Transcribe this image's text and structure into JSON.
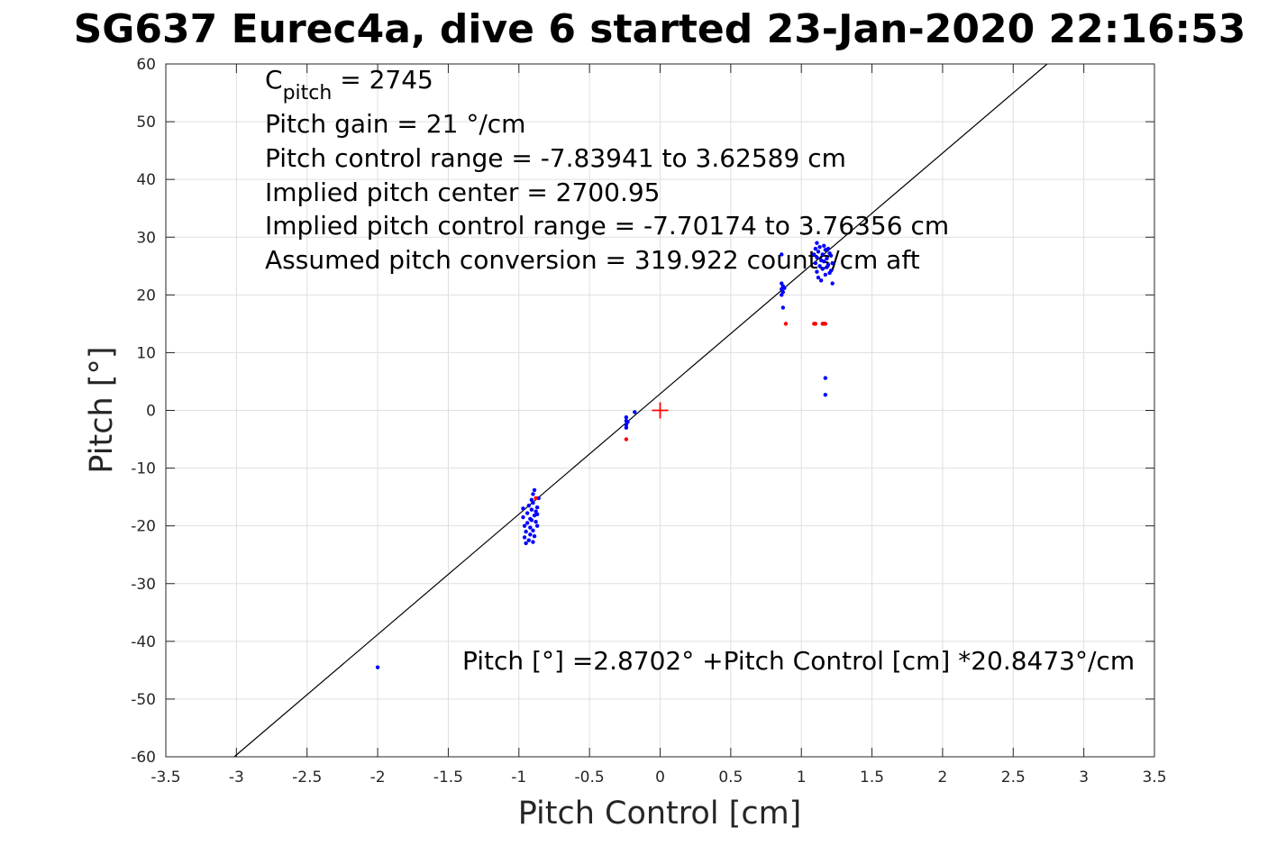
{
  "chart_data": {
    "type": "scatter",
    "title": "SG637 Eurec4a, dive 6 started 23-Jan-2020 22:16:53",
    "xlabel": "Pitch Control [cm]",
    "ylabel": "Pitch [°]",
    "xlim": [
      -3.5,
      3.5
    ],
    "ylim": [
      -60,
      60
    ],
    "xticks": [
      -3.5,
      -3,
      -2.5,
      -2,
      -1.5,
      -1,
      -0.5,
      0,
      0.5,
      1,
      1.5,
      2,
      2.5,
      3,
      3.5
    ],
    "yticks": [
      -60,
      -50,
      -40,
      -30,
      -20,
      -10,
      0,
      10,
      20,
      30,
      40,
      50,
      60
    ],
    "grid": true,
    "colors": {
      "good": "#0000ff",
      "bad": "#ff0000",
      "fit": "#000000",
      "center": "#ff0000"
    },
    "annotations": {
      "c_pitch_label": "C",
      "c_pitch_sub": "pitch",
      "c_pitch_value": " = 2745",
      "lines": [
        "Pitch gain = 21 °/cm",
        "Pitch control range = -7.83941 to 3.62589 cm",
        "Implied pitch center = 2700.95",
        "Implied pitch control range = -7.70174 to 3.76356 cm",
        "Assumed pitch conversion = 319.922 counts/cm aft"
      ],
      "fit_equation": "Pitch [°] =2.8702° +Pitch Control [cm] *20.8473°/cm"
    },
    "fit": {
      "intercept": 2.8702,
      "slope": 20.8473
    },
    "center_marker": {
      "x": 0,
      "y": 0
    },
    "series": [
      {
        "color": "#0000ff",
        "points": [
          [
            -2.0,
            -44.5
          ],
          [
            -0.97,
            -17.0
          ],
          [
            -0.97,
            -18.5
          ],
          [
            -0.96,
            -20.0
          ],
          [
            -0.96,
            -22.0
          ],
          [
            -0.95,
            -23.0
          ],
          [
            -0.95,
            -21.0
          ],
          [
            -0.94,
            -19.5
          ],
          [
            -0.94,
            -17.8
          ],
          [
            -0.93,
            -16.5
          ],
          [
            -0.93,
            -22.5
          ],
          [
            -0.92,
            -21.5
          ],
          [
            -0.92,
            -20.3
          ],
          [
            -0.92,
            -18.8
          ],
          [
            -0.91,
            -15.5
          ],
          [
            -0.91,
            -17.2
          ],
          [
            -0.91,
            -19.0
          ],
          [
            -0.9,
            -14.5
          ],
          [
            -0.9,
            -16.0
          ],
          [
            -0.9,
            -20.8
          ],
          [
            -0.9,
            -22.8
          ],
          [
            -0.89,
            -13.8
          ],
          [
            -0.89,
            -18.2
          ],
          [
            -0.89,
            -21.8
          ],
          [
            -0.88,
            -17.5
          ],
          [
            -0.88,
            -19.3
          ],
          [
            -0.87,
            -16.8
          ],
          [
            -0.87,
            -18.0
          ],
          [
            -0.87,
            -20.0
          ],
          [
            -0.86,
            -15.2
          ],
          [
            -0.24,
            -1.2
          ],
          [
            -0.24,
            -1.8
          ],
          [
            -0.24,
            -2.5
          ],
          [
            -0.24,
            -3.0
          ],
          [
            -0.23,
            -2.0
          ],
          [
            -0.18,
            -0.3
          ],
          [
            0.86,
            21.0
          ],
          [
            0.86,
            22.0
          ],
          [
            0.86,
            20.0
          ],
          [
            0.87,
            21.5
          ],
          [
            0.87,
            20.5
          ],
          [
            0.87,
            17.8
          ],
          [
            0.88,
            21.2
          ],
          [
            0.86,
            27.0
          ],
          [
            1.09,
            27.0
          ],
          [
            1.1,
            25.5
          ],
          [
            1.1,
            28.0
          ],
          [
            1.11,
            26.5
          ],
          [
            1.11,
            24.0
          ],
          [
            1.12,
            27.5
          ],
          [
            1.12,
            23.0
          ],
          [
            1.13,
            25.0
          ],
          [
            1.13,
            28.3
          ],
          [
            1.14,
            26.0
          ],
          [
            1.14,
            22.5
          ],
          [
            1.15,
            27.0
          ],
          [
            1.15,
            24.5
          ],
          [
            1.16,
            28.5
          ],
          [
            1.16,
            25.8
          ],
          [
            1.17,
            23.5
          ],
          [
            1.17,
            27.8
          ],
          [
            1.18,
            26.3
          ],
          [
            1.18,
            24.8
          ],
          [
            1.19,
            28.0
          ],
          [
            1.19,
            25.2
          ],
          [
            1.2,
            27.2
          ],
          [
            1.2,
            23.8
          ],
          [
            1.21,
            26.8
          ],
          [
            1.21,
            24.2
          ],
          [
            1.22,
            22.0
          ],
          [
            1.22,
            25.5
          ],
          [
            1.11,
            29.0
          ],
          [
            1.17,
            5.6
          ],
          [
            1.17,
            2.7
          ]
        ]
      },
      {
        "color": "#ff0000",
        "points": [
          [
            -0.24,
            -5.0
          ],
          [
            -0.88,
            -15.2
          ],
          [
            0.89,
            15.0
          ],
          [
            1.09,
            15.0
          ],
          [
            1.1,
            15.0
          ],
          [
            1.15,
            15.0
          ],
          [
            1.16,
            15.0
          ],
          [
            1.17,
            15.0
          ]
        ]
      }
    ]
  }
}
